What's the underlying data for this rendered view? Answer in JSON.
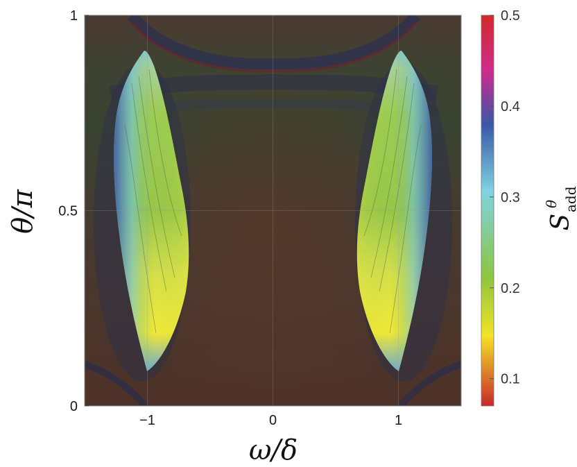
{
  "chart_data": {
    "type": "heatmap",
    "title": "",
    "xlabel": "ω/δ",
    "ylabel": "θ/π",
    "xlim": [
      -1.5,
      1.5
    ],
    "ylim": [
      0,
      1
    ],
    "x_ticks": [
      -1,
      0,
      1
    ],
    "x_tick_labels": [
      "−1",
      "0",
      "1"
    ],
    "y_ticks": [
      0,
      0.5,
      1
    ],
    "y_tick_labels": [
      "0",
      "0.5",
      "1"
    ],
    "grid": true,
    "colorbar": {
      "label_main": "S",
      "label_sup": "θ",
      "label_sub": "add",
      "range": [
        0.07,
        0.5
      ],
      "ticks": [
        0.1,
        0.2,
        0.3,
        0.4,
        0.5
      ],
      "tick_labels": [
        "0.1",
        "0.2",
        "0.3",
        "0.4",
        "0.5"
      ],
      "colormap": [
        "#c8282a",
        "#f4e325",
        "#8cc63f",
        "#7fd3e2",
        "#3a57a8",
        "#cf2b8c",
        "#d32a2a"
      ]
    },
    "regions": [
      {
        "name": "left",
        "omega_center": -1.0,
        "theta_range": [
          0.09,
          0.91
        ],
        "value_min": 0.13,
        "value_max": 0.32
      },
      {
        "name": "right",
        "omega_center": 1.0,
        "theta_range": [
          0.09,
          0.91
        ],
        "value_min": 0.13,
        "value_max": 0.32
      }
    ],
    "background_color": "#4a3a30"
  }
}
